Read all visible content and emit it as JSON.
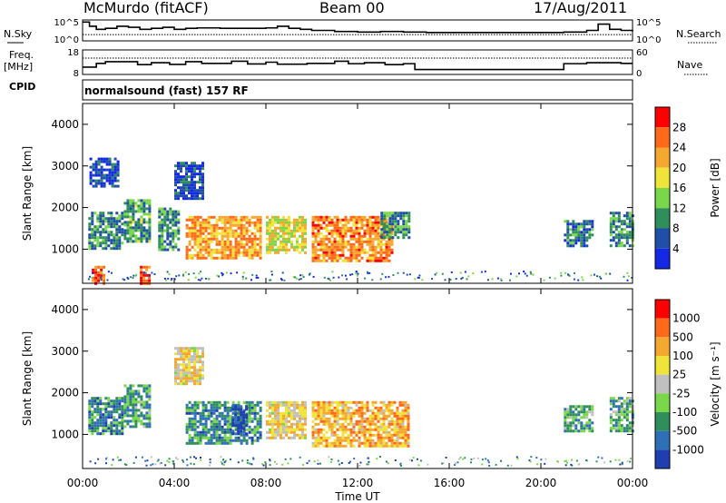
{
  "header": {
    "site": "McMurdo (fitACF)",
    "beam": "Beam 00",
    "date": "17/Aug/2011"
  },
  "left_labels": {
    "nsky": "N.Sky",
    "freq": "Freq.",
    "mhz": "[MHz]",
    "cpid": "CPID"
  },
  "right_labels": {
    "nsearch": "N.Search",
    "nave": "Nave"
  },
  "cpid_text": "normalsound (fast) 157 RF",
  "chart_data": [
    {
      "type": "line",
      "name_panel": "noise",
      "x_hours": [
        0,
        0.3,
        0.6,
        1.0,
        1.5,
        2.0,
        2.5,
        3.0,
        3.5,
        4.0,
        4.5,
        5.0,
        6.0,
        7.0,
        8.0,
        8.5,
        9.0,
        9.5,
        10.0,
        11.0,
        12.0,
        13.0,
        14.0,
        15.0,
        16.0,
        17.0,
        18.0,
        19.0,
        20.0,
        21.0,
        22.0,
        22.5,
        23.0,
        23.5,
        24.0
      ],
      "series": [
        {
          "values": [
            0.9,
            0.7,
            0.55,
            0.6,
            0.7,
            0.65,
            0.55,
            0.6,
            0.65,
            0.55,
            0.6,
            0.62,
            0.6,
            0.6,
            0.62,
            0.7,
            0.6,
            0.55,
            0.5,
            0.45,
            0.42,
            0.45,
            0.42,
            0.4,
            0.4,
            0.4,
            0.4,
            0.4,
            0.4,
            0.42,
            0.5,
            0.8,
            0.55,
            0.5,
            0.45
          ]
        },
        {
          "values": [
            0.3,
            0.3,
            0.3,
            0.3,
            0.3,
            0.3,
            0.3,
            0.3,
            0.3,
            0.3,
            0.3,
            0.3,
            0.3,
            0.3,
            0.3,
            0.3,
            0.3,
            0.3,
            0.3,
            0.3,
            0.3,
            0.3,
            0.3,
            0.3,
            0.3,
            0.3,
            0.3,
            0.3,
            0.3,
            0.3,
            0.3,
            0.3,
            0.3,
            0.3,
            0.3
          ]
        }
      ],
      "left_ticks": [
        "10^5",
        "10^0"
      ],
      "right_ticks": [
        "10^5",
        "10^0"
      ]
    },
    {
      "type": "line",
      "name_panel": "frequency",
      "x_hours": [
        0,
        0.6,
        1.0,
        2.4,
        3.0,
        3.8,
        4.5,
        5.2,
        6.5,
        7.2,
        8.0,
        8.5,
        9.8,
        11.0,
        11.6,
        12.3,
        13.2,
        14.0,
        14.5,
        16.5,
        19.0,
        20.7,
        21.0,
        22.0,
        23.5,
        24.0
      ],
      "series": [
        {
          "values": [
            11,
            12.5,
            13.2,
            12.0,
            12.8,
            12.1,
            13.2,
            12.5,
            13.4,
            12.3,
            13.0,
            12.2,
            12.5,
            13.4,
            12.4,
            12.8,
            12.0,
            12.4,
            10.0,
            10.0,
            10.0,
            10.0,
            12.4,
            12.8,
            12.5,
            12.5
          ]
        },
        {
          "values": [
            40,
            40,
            40,
            40,
            40,
            40,
            40,
            40,
            40,
            40,
            40,
            40,
            40,
            40,
            40,
            40,
            40,
            40,
            40,
            40,
            40,
            40,
            40,
            40,
            40,
            40
          ]
        }
      ],
      "left_ticks": [
        "18",
        "8"
      ],
      "right_ticks": [
        "60",
        "0"
      ]
    },
    {
      "type": "heatmap",
      "name_panel": "power",
      "ylabel": "Slant Range [km]",
      "yticks": [
        "1000",
        "2000",
        "3000",
        "4000"
      ],
      "ylim": [
        180,
        4500
      ],
      "colorbar_label": "Power [dB]",
      "colorbar_ticks": [
        "4",
        "8",
        "12",
        "16",
        "20",
        "24",
        "28"
      ],
      "colorbar_colors": [
        "#1428e6",
        "#1f4fa8",
        "#2f8e5c",
        "#7ad64a",
        "#f0e43a",
        "#f5a830",
        "#ff6a1a",
        "#ff0000"
      ],
      "patches": [
        {
          "x": [
            0.25,
            1.7
          ],
          "y": [
            1000,
            1900
          ],
          "level": 0.3
        },
        {
          "x": [
            1.8,
            2.9
          ],
          "y": [
            1200,
            2200
          ],
          "level": 0.35
        },
        {
          "x": [
            3.3,
            4.2
          ],
          "y": [
            1000,
            2000
          ],
          "level": 0.3
        },
        {
          "x": [
            4.5,
            7.8
          ],
          "y": [
            800,
            1800
          ],
          "level": 0.7
        },
        {
          "x": [
            8.0,
            9.7
          ],
          "y": [
            900,
            1800
          ],
          "level": 0.55
        },
        {
          "x": [
            10.0,
            13.5
          ],
          "y": [
            700,
            1800
          ],
          "level": 0.75
        },
        {
          "x": [
            13.0,
            14.2
          ],
          "y": [
            1300,
            1900
          ],
          "level": 0.3
        },
        {
          "x": [
            21.0,
            22.2
          ],
          "y": [
            1100,
            1700
          ],
          "level": 0.25
        },
        {
          "x": [
            23.0,
            24.0
          ],
          "y": [
            1100,
            1900
          ],
          "level": 0.3
        },
        {
          "x": [
            0.3,
            1.5
          ],
          "y": [
            2500,
            3200
          ],
          "level": 0.15
        },
        {
          "x": [
            4.0,
            5.2
          ],
          "y": [
            2200,
            3100
          ],
          "level": 0.15
        },
        {
          "x": [
            0.4,
            0.9
          ],
          "y": [
            200,
            600
          ],
          "level": 0.85
        },
        {
          "x": [
            2.5,
            2.9
          ],
          "y": [
            200,
            600
          ],
          "level": 0.85
        }
      ]
    },
    {
      "type": "heatmap",
      "name_panel": "velocity",
      "ylabel": "Slant Range [km]",
      "yticks": [
        "1000",
        "2000",
        "3000",
        "4000"
      ],
      "ylim": [
        180,
        4500
      ],
      "xlabel": "Time UT",
      "xticks": [
        "00:00",
        "04:00",
        "08:00",
        "12:00",
        "16:00",
        "20:00",
        "00:00"
      ],
      "colorbar_label": "Velocity [m s⁻¹]",
      "colorbar_ticks": [
        "1000",
        "500",
        "100",
        "25",
        "-25",
        "-100",
        "-500",
        "-1000"
      ],
      "colorbar_colors": [
        "#1f3fb0",
        "#2f6fb8",
        "#2f8e5c",
        "#7ad64a",
        "#c0c0c0",
        "#f0e43a",
        "#f5a830",
        "#ff6a1a",
        "#ff0000"
      ],
      "patches": [
        {
          "x": [
            0.25,
            1.7
          ],
          "y": [
            1000,
            1900
          ],
          "level": 0.25
        },
        {
          "x": [
            1.8,
            2.9
          ],
          "y": [
            1200,
            2200
          ],
          "level": 0.3
        },
        {
          "x": [
            4.5,
            7.8
          ],
          "y": [
            800,
            1800
          ],
          "level": 0.25
        },
        {
          "x": [
            6.5,
            7.2
          ],
          "y": [
            1000,
            1700
          ],
          "level": 0.05
        },
        {
          "x": [
            8.0,
            9.7
          ],
          "y": [
            900,
            1800
          ],
          "level": 0.6
        },
        {
          "x": [
            10.0,
            14.2
          ],
          "y": [
            700,
            1800
          ],
          "level": 0.7
        },
        {
          "x": [
            21.0,
            22.2
          ],
          "y": [
            1100,
            1700
          ],
          "level": 0.3
        },
        {
          "x": [
            23.0,
            24.0
          ],
          "y": [
            1100,
            1900
          ],
          "level": 0.3
        },
        {
          "x": [
            4.0,
            5.3
          ],
          "y": [
            2200,
            3100
          ],
          "level": 0.6
        }
      ]
    }
  ]
}
